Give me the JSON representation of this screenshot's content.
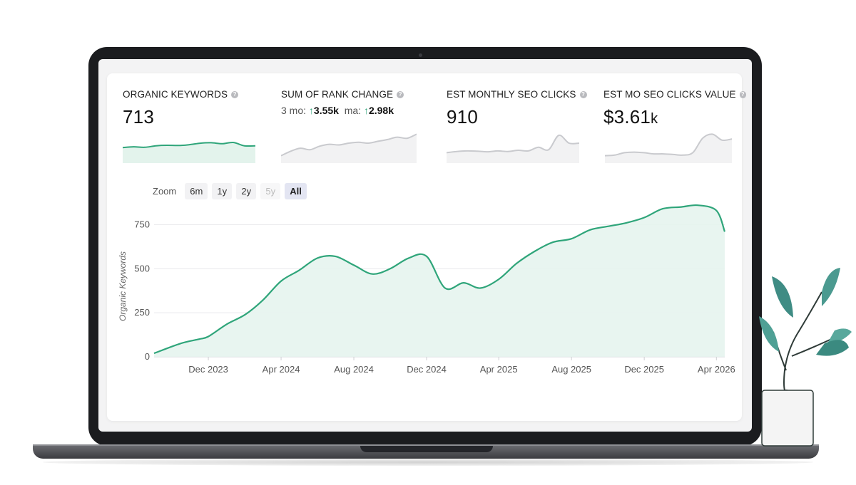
{
  "metrics": [
    {
      "title": "ORGANIC KEYWORDS",
      "value": "713",
      "spark": [
        0.55,
        0.58,
        0.56,
        0.62,
        0.64,
        0.63,
        0.66,
        0.72,
        0.74,
        0.7,
        0.75,
        0.62,
        0.62
      ]
    },
    {
      "title": "SUM OF RANK CHANGE",
      "sub": {
        "mo_label": "3 mo:",
        "mo_value": "3.55k",
        "ma_label": "ma:",
        "ma_value": "2.98k"
      },
      "spark": [
        0.2,
        0.35,
        0.45,
        0.4,
        0.52,
        0.58,
        0.56,
        0.62,
        0.65,
        0.62,
        0.68,
        0.74,
        0.82,
        0.78,
        0.92
      ]
    },
    {
      "title": "EST MONTHLY SEO CLICKS",
      "value": "910",
      "spark": [
        0.3,
        0.34,
        0.36,
        0.35,
        0.33,
        0.36,
        0.34,
        0.38,
        0.36,
        0.48,
        0.4,
        0.88,
        0.62,
        0.62
      ]
    },
    {
      "title": "EST MO SEO CLICKS VALUE",
      "value": "$3.61",
      "value_unit": "k",
      "spark": [
        0.2,
        0.22,
        0.3,
        0.32,
        0.3,
        0.26,
        0.26,
        0.24,
        0.22,
        0.3,
        0.78,
        0.92,
        0.72,
        0.76
      ]
    }
  ],
  "zoom": {
    "label": "Zoom",
    "options": [
      "6m",
      "1y",
      "2y",
      "5y",
      "All"
    ],
    "active": "All",
    "disabled": [
      "5y"
    ]
  },
  "chart_data": {
    "type": "area",
    "ylabel": "Organic Keywords",
    "xlabel": "",
    "ylim": [
      0,
      800
    ],
    "yticks": [
      0,
      250,
      500,
      750
    ],
    "grid": true,
    "x_ticks": [
      "Dec 2023",
      "Apr 2024",
      "Aug 2024",
      "Dec 2024",
      "Apr 2025",
      "Aug 2025",
      "Dec 2025",
      "Apr 2026"
    ],
    "x_start": "2023-09-01",
    "x_end": "2026-04-15",
    "series": [
      {
        "color": "#2fa57a",
        "x": [
          "2023-09-01",
          "2023-10-15",
          "2023-11-15",
          "2023-12-01",
          "2024-01-01",
          "2024-02-01",
          "2024-03-01",
          "2024-04-01",
          "2024-05-01",
          "2024-06-01",
          "2024-07-01",
          "2024-08-01",
          "2024-09-01",
          "2024-10-01",
          "2024-11-01",
          "2024-12-01",
          "2025-01-01",
          "2025-02-01",
          "2025-03-01",
          "2025-04-01",
          "2025-05-01",
          "2025-06-01",
          "2025-07-01",
          "2025-08-01",
          "2025-09-01",
          "2025-10-01",
          "2025-11-01",
          "2025-12-01",
          "2026-01-01",
          "2026-02-01",
          "2026-03-01",
          "2026-04-01",
          "2026-04-15"
        ],
        "y": [
          20,
          75,
          100,
          115,
          185,
          240,
          320,
          430,
          490,
          560,
          570,
          520,
          470,
          500,
          560,
          570,
          390,
          420,
          390,
          440,
          530,
          600,
          650,
          670,
          720,
          740,
          760,
          790,
          840,
          850,
          860,
          830,
          710
        ]
      }
    ]
  }
}
